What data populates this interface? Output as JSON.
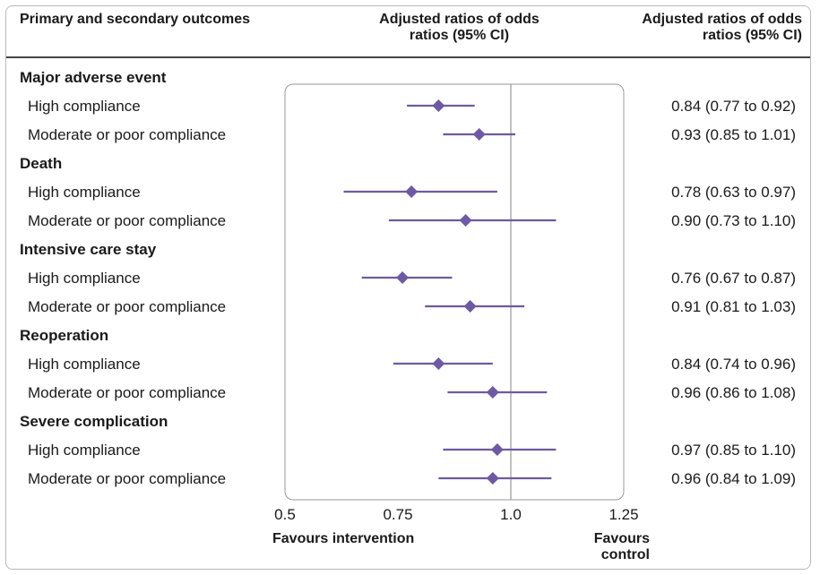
{
  "headers": {
    "left": "Primary and secondary outcomes",
    "middle": "Adjusted ratios of odds ratios (95% CI)",
    "right": "Adjusted ratios of odds ratios (95% CI)"
  },
  "favours": {
    "left": "Favours intervention",
    "right": "Favours control"
  },
  "colors": {
    "marker": "#6e59a6",
    "reference_line": "#9a9a9a",
    "panel_border": "#9a9a9a"
  },
  "chart_data": {
    "type": "forest",
    "xlim": [
      0.5,
      1.25
    ],
    "xticks": [
      "0.5",
      "0.75",
      "1.0",
      "1.25"
    ],
    "xtick_values": [
      0.5,
      0.75,
      1.0,
      1.25
    ],
    "reference_value": 1.0,
    "groups": [
      {
        "name": "Major adverse event",
        "rows": [
          {
            "label": "High compliance",
            "estimate": 0.84,
            "low": 0.77,
            "high": 0.92,
            "text": "0.84 (0.77 to 0.92)"
          },
          {
            "label": "Moderate or poor compliance",
            "estimate": 0.93,
            "low": 0.85,
            "high": 1.01,
            "text": "0.93 (0.85 to 1.01)"
          }
        ]
      },
      {
        "name": "Death",
        "rows": [
          {
            "label": "High compliance",
            "estimate": 0.78,
            "low": 0.63,
            "high": 0.97,
            "text": "0.78 (0.63 to 0.97)"
          },
          {
            "label": "Moderate or poor compliance",
            "estimate": 0.9,
            "low": 0.73,
            "high": 1.1,
            "text": "0.90 (0.73 to 1.10)"
          }
        ]
      },
      {
        "name": "Intensive care stay",
        "rows": [
          {
            "label": "High compliance",
            "estimate": 0.76,
            "low": 0.67,
            "high": 0.87,
            "text": "0.76 (0.67 to 0.87)"
          },
          {
            "label": "Moderate or poor compliance",
            "estimate": 0.91,
            "low": 0.81,
            "high": 1.03,
            "text": "0.91 (0.81 to 1.03)"
          }
        ]
      },
      {
        "name": "Reoperation",
        "rows": [
          {
            "label": "High compliance",
            "estimate": 0.84,
            "low": 0.74,
            "high": 0.96,
            "text": "0.84 (0.74 to 0.96)"
          },
          {
            "label": "Moderate or poor compliance",
            "estimate": 0.96,
            "low": 0.86,
            "high": 1.08,
            "text": "0.96 (0.86 to 1.08)"
          }
        ]
      },
      {
        "name": "Severe complication",
        "rows": [
          {
            "label": "High compliance",
            "estimate": 0.97,
            "low": 0.85,
            "high": 1.1,
            "text": "0.97 (0.85 to 1.10)"
          },
          {
            "label": "Moderate or poor compliance",
            "estimate": 0.96,
            "low": 0.84,
            "high": 1.09,
            "text": "0.96 (0.84 to 1.09)"
          }
        ]
      }
    ]
  }
}
